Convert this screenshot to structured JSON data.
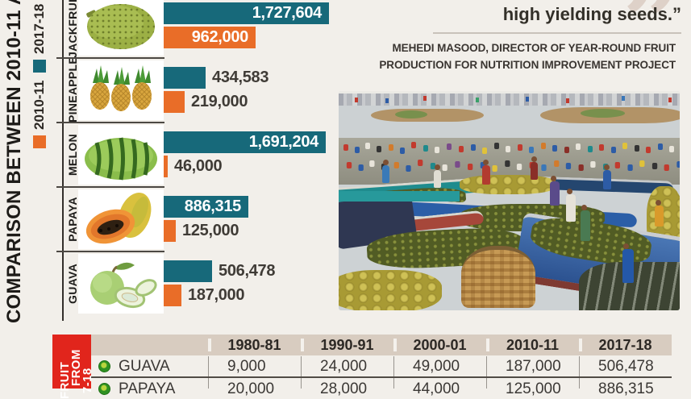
{
  "page": {
    "background": "#f2efea"
  },
  "title_rail": {
    "title": "COMPARISON BETWEEN 2010-11 A",
    "legend": [
      {
        "label": "2017-18",
        "color": "#17697a"
      },
      {
        "label": "2010-11",
        "color": "#e96d28"
      }
    ]
  },
  "chart_data": [
    {
      "type": "bar",
      "orientation": "horizontal",
      "categories": [
        "JACKFRUIT",
        "PINEAPPLE",
        "MELON",
        "PAPAYA",
        "GUAVA"
      ],
      "series": [
        {
          "name": "2017-18",
          "color": "#17697a",
          "values": [
            1727604,
            434583,
            1691204,
            886315,
            506478
          ],
          "labels": [
            "1,727,604",
            "434,583",
            "1,691,204",
            "886,315",
            "506,478"
          ]
        },
        {
          "name": "2010-11",
          "color": "#e96d28",
          "values": [
            962000,
            219000,
            46000,
            125000,
            187000
          ],
          "labels": [
            "962,000",
            "219,000",
            "46,000",
            "125,000",
            "187,000"
          ]
        }
      ],
      "xmax": 1727604,
      "grid": false,
      "legend_position": "left-rail",
      "value_labels_shown": true
    },
    {
      "type": "table",
      "columns": [
        "1980-81",
        "1990-91",
        "2000-01",
        "2010-11",
        "2017-18"
      ],
      "rows": [
        {
          "name": "GUAVA",
          "values": [
            "9,000",
            "24,000",
            "49,000",
            "187,000",
            "506,478"
          ]
        },
        {
          "name": "PAPAYA",
          "values": [
            "20,000",
            "28,000",
            "44,000",
            "125,000",
            "886,315"
          ]
        }
      ]
    }
  ],
  "quote": {
    "line": "high yielding seeds.”",
    "quote_mark": "”",
    "attribution_lines": [
      "MEHEDI MASOOD, DIRECTOR OF YEAR-ROUND FRUIT",
      "PRODUCTION FOR NUTRITION IMPROVEMENT PROJECT"
    ]
  },
  "table_side_label": {
    "lines": [
      "FRUIT",
      "FROM",
      "7-18"
    ],
    "background": "#e1251c"
  },
  "photo": {
    "description": "Floating wholesale fruit market: wooden boats loaded with pineapples and jackfruits, crowds of buyers and sellers on the water"
  }
}
